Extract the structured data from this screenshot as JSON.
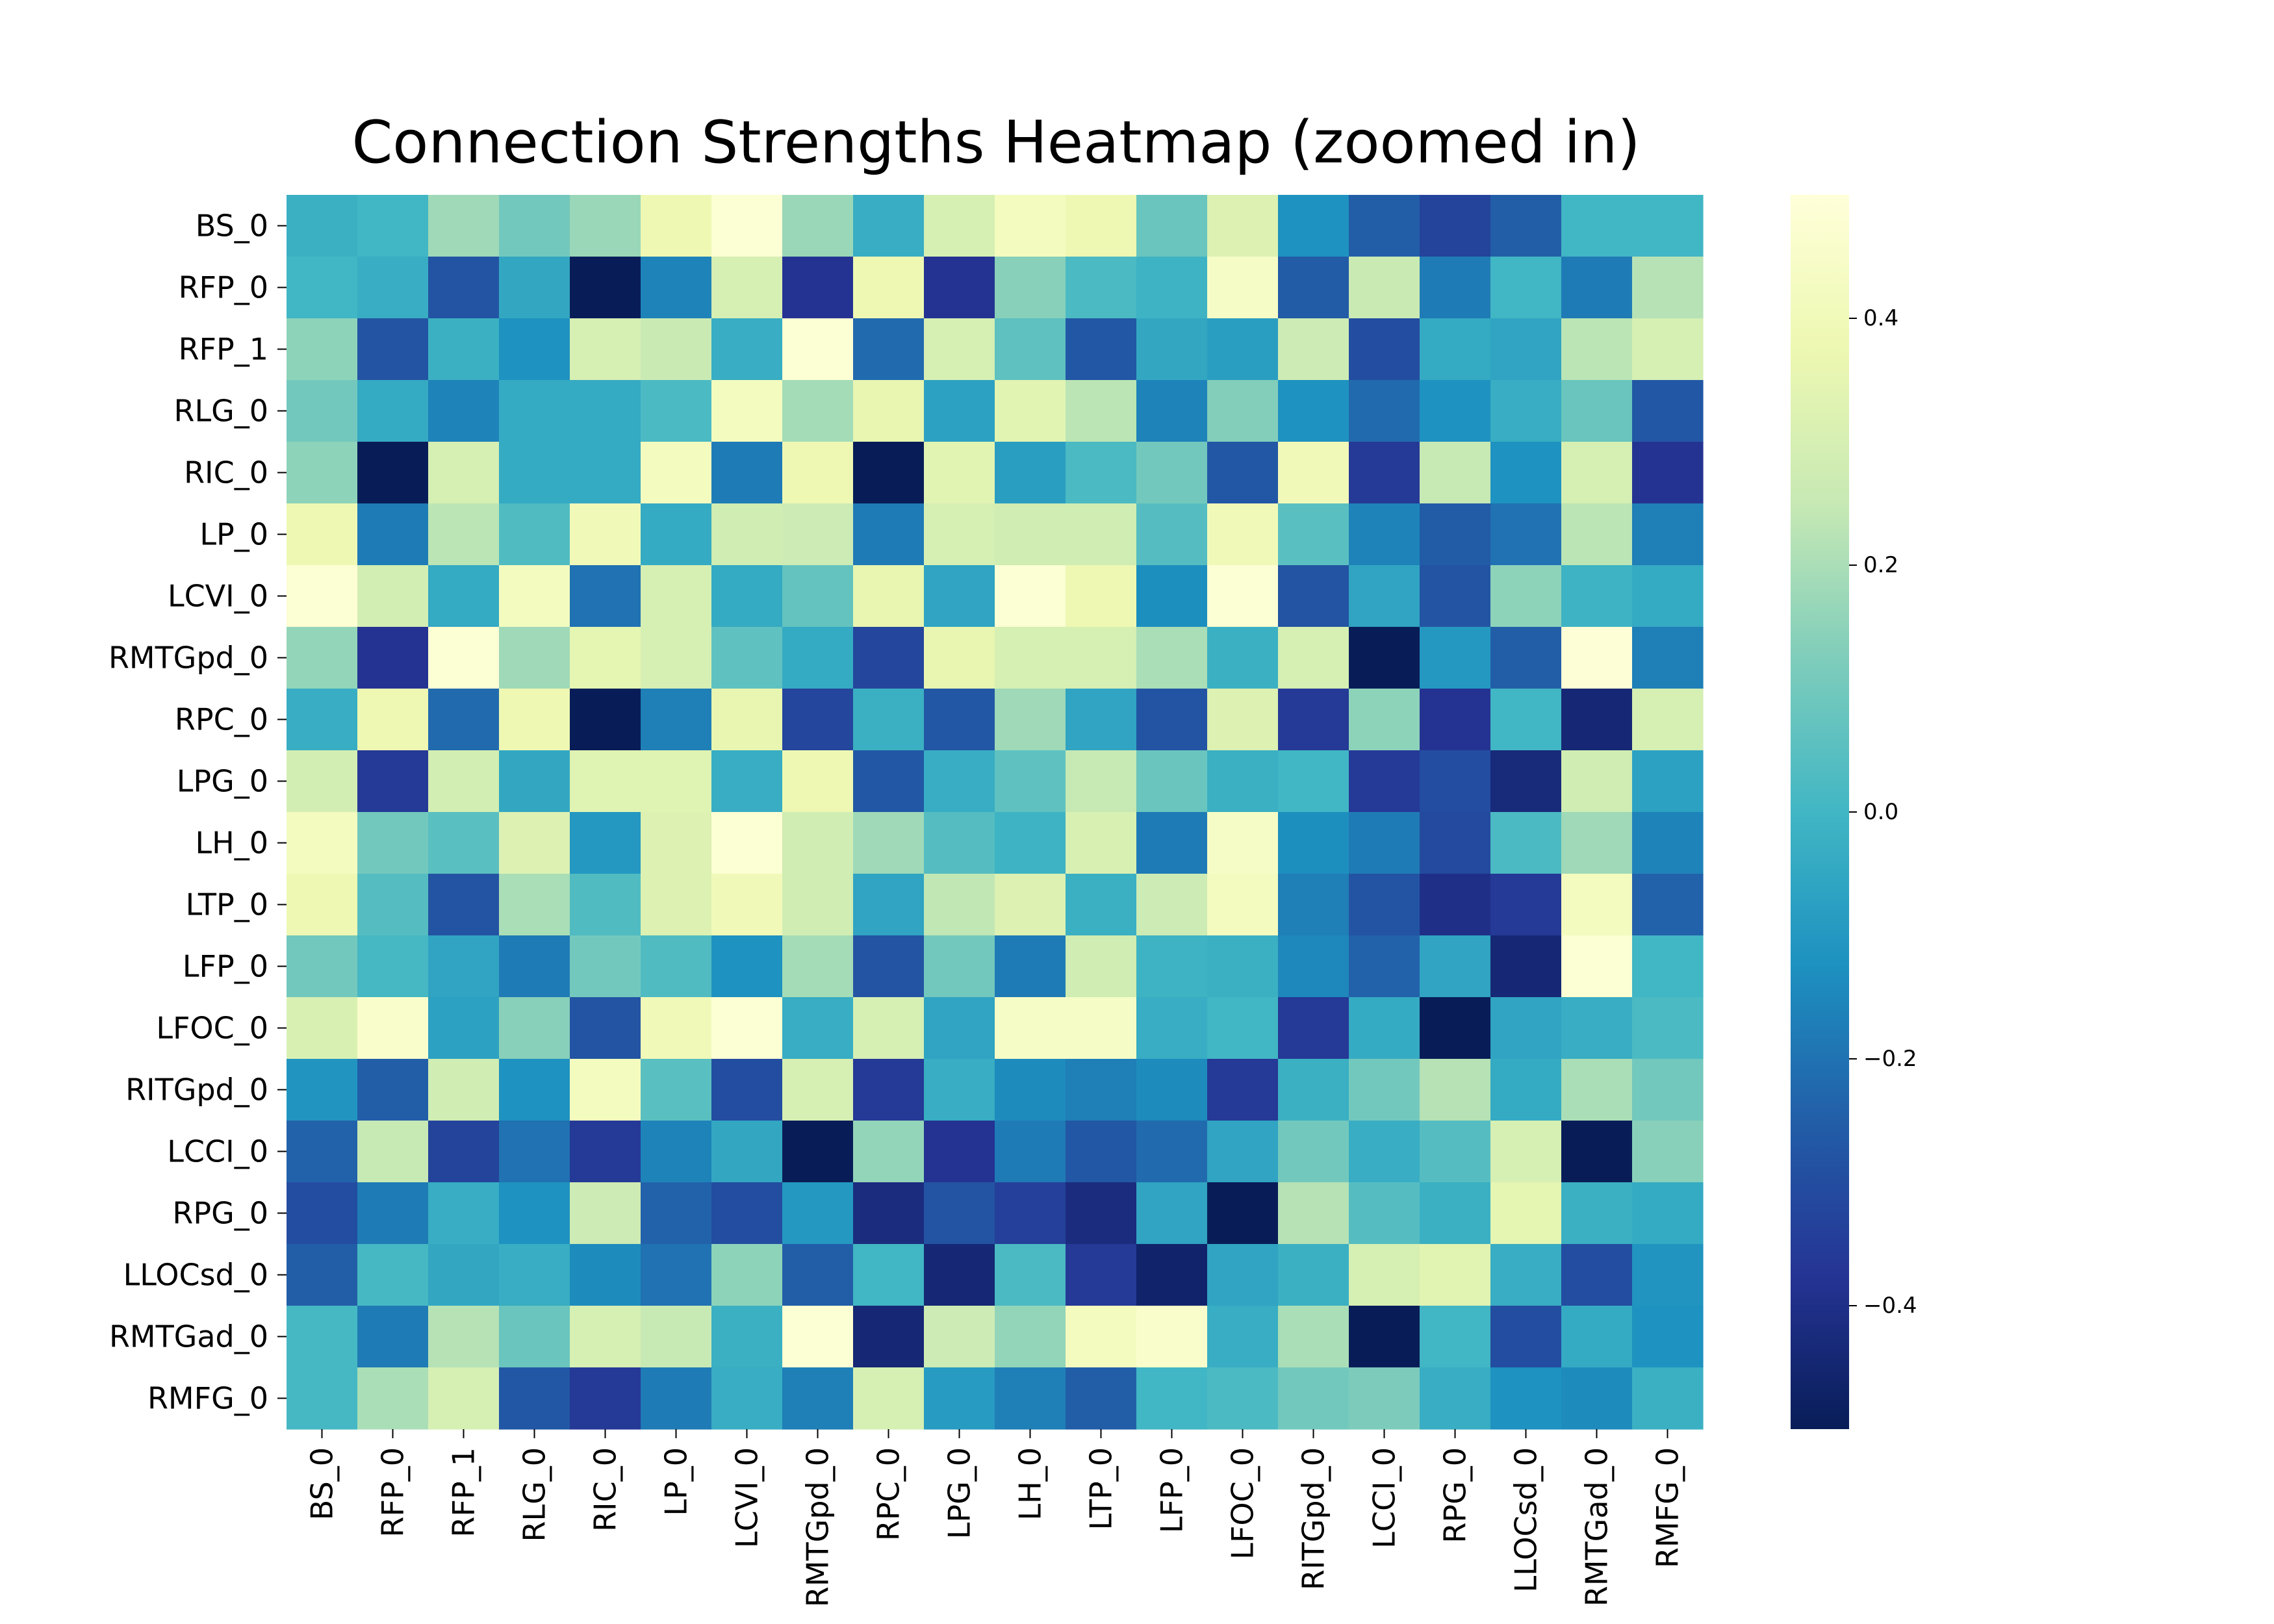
{
  "chart_data": {
    "type": "heatmap",
    "title": "Connection Strengths Heatmap (zoomed in)",
    "x_labels": [
      "BS_0",
      "RFP_0",
      "RFP_1",
      "RLG_0",
      "RIC_0",
      "LP_0",
      "LCVI_0",
      "RMTGpd_0",
      "RPC_0",
      "LPG_0",
      "LH_0",
      "LTP_0",
      "LFP_0",
      "LFOC_0",
      "RITGpd_0",
      "LCCI_0",
      "RPG_0",
      "LLOCsd_0",
      "RMTGad_0",
      "RMFG_0"
    ],
    "y_labels": [
      "BS_0",
      "RFP_0",
      "RFP_1",
      "RLG_0",
      "RIC_0",
      "LP_0",
      "LCVI_0",
      "RMTGpd_0",
      "RPC_0",
      "LPG_0",
      "LH_0",
      "LTP_0",
      "LFP_0",
      "LFOC_0",
      "RITGpd_0",
      "LCCI_0",
      "RPG_0",
      "LLOCsd_0",
      "RMTGad_0",
      "RMFG_0"
    ],
    "values": [
      [
        -0.02,
        0.0,
        0.18,
        0.1,
        0.17,
        0.38,
        0.48,
        0.17,
        -0.03,
        0.3,
        0.42,
        0.38,
        0.08,
        0.32,
        -0.12,
        -0.25,
        -0.33,
        -0.25,
        0.0,
        0.0
      ],
      [
        0.0,
        -0.03,
        -0.28,
        -0.05,
        -0.5,
        -0.16,
        0.3,
        -0.38,
        0.38,
        -0.38,
        0.14,
        0.02,
        -0.01,
        0.44,
        -0.26,
        0.26,
        -0.18,
        0.0,
        -0.18,
        0.22
      ],
      [
        0.15,
        -0.28,
        -0.02,
        -0.12,
        0.3,
        0.26,
        -0.03,
        0.48,
        -0.22,
        0.3,
        0.06,
        -0.27,
        -0.05,
        -0.08,
        0.27,
        -0.3,
        -0.04,
        -0.06,
        0.23,
        0.3
      ],
      [
        0.1,
        -0.04,
        -0.16,
        -0.04,
        -0.04,
        0.02,
        0.42,
        0.19,
        0.36,
        -0.07,
        0.34,
        0.23,
        -0.16,
        0.13,
        -0.12,
        -0.22,
        -0.12,
        -0.03,
        0.08,
        -0.27
      ],
      [
        0.15,
        -0.5,
        0.3,
        -0.04,
        -0.04,
        0.42,
        -0.18,
        0.38,
        -0.5,
        0.34,
        -0.08,
        0.02,
        0.1,
        -0.27,
        0.4,
        -0.36,
        0.25,
        -0.12,
        0.3,
        -0.38
      ],
      [
        0.38,
        -0.18,
        0.23,
        0.03,
        0.4,
        -0.04,
        0.28,
        0.27,
        -0.18,
        0.3,
        0.28,
        0.28,
        0.04,
        0.4,
        0.05,
        -0.16,
        -0.26,
        -0.2,
        0.23,
        -0.17
      ],
      [
        0.48,
        0.29,
        -0.04,
        0.42,
        -0.2,
        0.3,
        -0.04,
        0.07,
        0.36,
        -0.06,
        0.48,
        0.38,
        -0.13,
        0.48,
        -0.28,
        -0.06,
        -0.28,
        0.15,
        -0.01,
        -0.04
      ],
      [
        0.16,
        -0.38,
        0.48,
        0.18,
        0.35,
        0.3,
        0.06,
        -0.04,
        -0.32,
        0.36,
        0.3,
        0.3,
        0.2,
        -0.02,
        0.3,
        -0.5,
        -0.1,
        -0.25,
        0.49,
        -0.17
      ],
      [
        -0.03,
        0.38,
        -0.22,
        0.38,
        -0.5,
        -0.17,
        0.36,
        -0.32,
        -0.02,
        -0.27,
        0.18,
        -0.06,
        -0.28,
        0.32,
        -0.36,
        0.15,
        -0.38,
        0.0,
        -0.44,
        0.3
      ],
      [
        0.29,
        -0.36,
        0.29,
        -0.05,
        0.33,
        0.33,
        -0.03,
        0.38,
        -0.27,
        -0.03,
        0.06,
        0.25,
        0.08,
        -0.02,
        0.0,
        -0.36,
        -0.3,
        -0.43,
        0.28,
        -0.07
      ],
      [
        0.42,
        0.1,
        0.05,
        0.32,
        -0.1,
        0.32,
        0.48,
        0.28,
        0.18,
        0.04,
        -0.01,
        0.31,
        -0.18,
        0.44,
        -0.13,
        -0.18,
        -0.31,
        0.02,
        0.18,
        -0.16
      ],
      [
        0.38,
        0.04,
        -0.28,
        0.2,
        0.03,
        0.32,
        0.4,
        0.28,
        -0.06,
        0.24,
        0.32,
        -0.02,
        0.27,
        0.42,
        -0.17,
        -0.28,
        -0.4,
        -0.36,
        0.42,
        -0.24
      ],
      [
        0.1,
        0.01,
        -0.06,
        -0.18,
        0.1,
        0.03,
        -0.12,
        0.19,
        -0.28,
        0.1,
        -0.18,
        0.28,
        -0.01,
        -0.02,
        -0.15,
        -0.24,
        -0.06,
        -0.44,
        0.48,
        0.0
      ],
      [
        0.31,
        0.46,
        -0.07,
        0.14,
        -0.28,
        0.4,
        0.48,
        -0.03,
        0.3,
        -0.06,
        0.44,
        0.44,
        -0.03,
        0.0,
        -0.36,
        -0.04,
        -0.5,
        -0.06,
        -0.03,
        0.02
      ],
      [
        -0.11,
        -0.25,
        0.28,
        -0.12,
        0.42,
        0.05,
        -0.3,
        0.3,
        -0.36,
        -0.03,
        -0.14,
        -0.17,
        -0.14,
        -0.36,
        -0.02,
        0.1,
        0.22,
        -0.04,
        0.2,
        0.1
      ],
      [
        -0.24,
        0.25,
        -0.33,
        -0.2,
        -0.36,
        -0.16,
        -0.05,
        -0.5,
        0.16,
        -0.38,
        -0.18,
        -0.27,
        -0.22,
        -0.06,
        0.1,
        -0.03,
        0.04,
        0.3,
        -0.5,
        0.14
      ],
      [
        -0.3,
        -0.18,
        -0.03,
        -0.12,
        0.27,
        -0.24,
        -0.3,
        -0.1,
        -0.42,
        -0.28,
        -0.34,
        -0.42,
        -0.06,
        -0.5,
        0.22,
        0.04,
        -0.02,
        0.35,
        -0.02,
        -0.04
      ],
      [
        -0.25,
        0.01,
        -0.05,
        -0.03,
        -0.14,
        -0.2,
        0.15,
        -0.25,
        0.0,
        -0.44,
        0.02,
        -0.36,
        -0.46,
        -0.06,
        -0.02,
        0.3,
        0.34,
        -0.03,
        -0.3,
        -0.11
      ],
      [
        0.01,
        -0.18,
        0.22,
        0.08,
        0.3,
        0.25,
        -0.02,
        0.48,
        -0.44,
        0.27,
        0.16,
        0.42,
        0.46,
        -0.03,
        0.2,
        -0.5,
        0.0,
        -0.3,
        -0.04,
        -0.12
      ],
      [
        0.01,
        0.2,
        0.3,
        -0.27,
        -0.36,
        -0.18,
        -0.03,
        -0.17,
        0.3,
        -0.09,
        -0.17,
        -0.25,
        0.0,
        0.02,
        0.1,
        0.12,
        -0.03,
        -0.12,
        -0.14,
        -0.02
      ]
    ],
    "vmin": -0.5,
    "vmax": 0.5,
    "colormap": "YlGnBu",
    "colorbar_ticks": [
      0.4,
      0.2,
      0.0,
      -0.2,
      -0.4
    ],
    "colorbar_tick_labels": [
      "0.4",
      "0.2",
      "0.0",
      "−0.2",
      "−0.4"
    ]
  }
}
